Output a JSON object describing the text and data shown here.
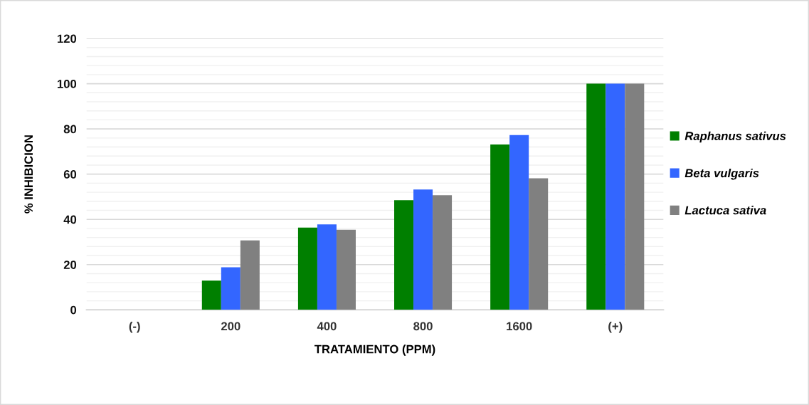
{
  "chart_data": {
    "type": "bar",
    "xlabel": "TRATAMIENTO (PPM)",
    "ylabel": "% INHIBICION",
    "categories": [
      "(-)",
      "200",
      "400",
      "800",
      "1600",
      "(+)"
    ],
    "series": [
      {
        "name": "Raphanus sativus",
        "color": "#007f00",
        "values": [
          0,
          12.9,
          36.4,
          48.5,
          73.1,
          100
        ]
      },
      {
        "name": "Beta vulgaris",
        "color": "#3366ff",
        "values": [
          0,
          18.8,
          37.8,
          53.2,
          77.3,
          100
        ]
      },
      {
        "name": "Lactuca sativa",
        "color": "#808080",
        "values": [
          0,
          30.7,
          35.4,
          50.7,
          58.2,
          100
        ]
      }
    ],
    "ylim": [
      0,
      120
    ],
    "yticks": [
      0,
      {
        "value": 4,
        "label": null
      },
      {
        "value": 8,
        "label": null
      },
      {
        "value": 12,
        "label": null
      },
      {
        "value": 16,
        "label": null
      },
      20,
      {
        "value": 24,
        "label": null
      },
      {
        "value": 28,
        "label": null
      },
      {
        "value": 32,
        "label": null
      },
      {
        "value": 36,
        "label": null
      },
      40,
      {
        "value": 44,
        "label": null
      },
      {
        "value": 48,
        "label": null
      },
      {
        "value": 52,
        "label": null
      },
      {
        "value": 56,
        "label": null
      },
      60,
      {
        "value": 64,
        "label": null
      },
      {
        "value": 68,
        "label": null
      },
      {
        "value": 72,
        "label": null
      },
      {
        "value": 76,
        "label": null
      },
      80,
      {
        "value": 84,
        "label": null
      },
      {
        "value": 88,
        "label": null
      },
      {
        "value": 92,
        "label": null
      },
      {
        "value": 96,
        "label": null
      },
      100,
      {
        "value": 104,
        "label": null
      },
      {
        "value": 108,
        "label": null
      },
      {
        "value": 112,
        "label": null
      },
      {
        "value": 116,
        "label": null
      },
      120
    ],
    "grid": "y",
    "legend": "right"
  }
}
